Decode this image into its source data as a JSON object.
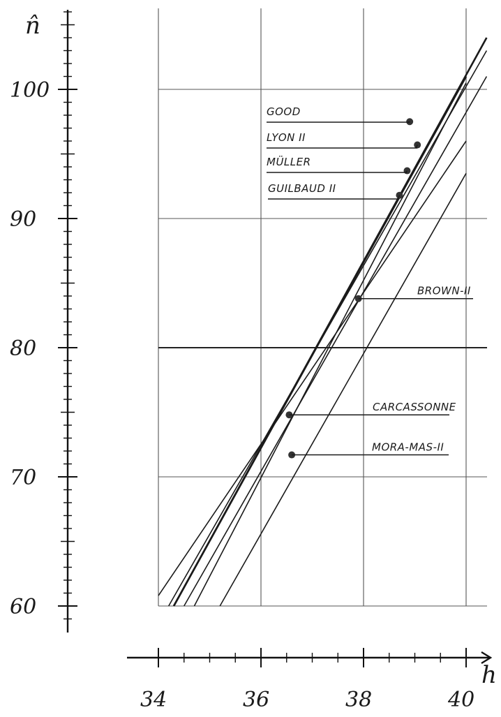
{
  "chart_data": {
    "type": "line",
    "title": "",
    "xlabel": "h",
    "ylabel": "n̂",
    "xlim": [
      34,
      40
    ],
    "ylim": [
      60,
      104
    ],
    "x_ticks": [
      "34",
      "36",
      "38",
      "40"
    ],
    "y_ticks": [
      "60",
      "70",
      "80",
      "90",
      "100"
    ],
    "grid": true,
    "legend": "inline labels on right",
    "series": [
      {
        "name": "GOOD",
        "points": [
          [
            34.3,
            60
          ],
          [
            40.4,
            104
          ]
        ],
        "marker": [
          38.9,
          97.5
        ]
      },
      {
        "name": "LYON II",
        "points": [
          [
            34.2,
            60
          ],
          [
            40.4,
            103
          ]
        ],
        "marker": [
          39.05,
          95.7
        ]
      },
      {
        "name": "MÜLLER",
        "points": [
          [
            34.3,
            60
          ],
          [
            40.0,
            101
          ]
        ],
        "marker": [
          38.85,
          93.7
        ]
      },
      {
        "name": "GUILBAUD II",
        "points": [
          [
            34.5,
            60
          ],
          [
            40.4,
            101
          ]
        ],
        "marker": [
          38.7,
          91.8
        ]
      },
      {
        "name": "BROWN-II",
        "points": [
          [
            34.0,
            60.8
          ],
          [
            40.0,
            96
          ]
        ],
        "marker": [
          37.9,
          83.8
        ]
      },
      {
        "name": "CARCASSONNE",
        "points": [
          [
            34.7,
            60
          ],
          [
            40.0,
            100.5
          ]
        ],
        "marker": [
          36.55,
          74.8
        ]
      },
      {
        "name": "MORA-MAS-II",
        "points": [
          [
            35.2,
            60
          ],
          [
            40.0,
            93.5
          ]
        ],
        "marker": [
          36.6,
          71.7
        ]
      }
    ]
  }
}
